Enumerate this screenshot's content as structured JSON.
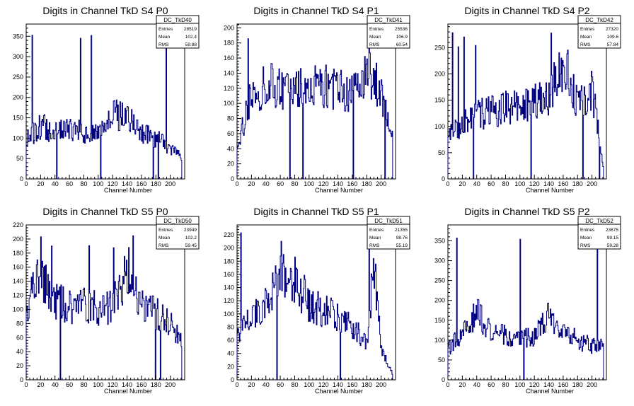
{
  "chart_data": [
    {
      "type": "histogram",
      "title": "Digits in Channel TkD S4 P0",
      "xlabel": "Channel Number",
      "xlim": [
        0,
        220
      ],
      "ylim": [
        0,
        380
      ],
      "xticks": [
        0,
        20,
        40,
        60,
        80,
        100,
        120,
        140,
        160,
        180,
        200
      ],
      "yticks": [
        50,
        100,
        150,
        200,
        250,
        300,
        350
      ],
      "stats": {
        "name": "DC_TkD40",
        "entries": "28519",
        "mean": "102.4",
        "rms": "59.88"
      },
      "bins": [
        [
          0,
          95
        ],
        [
          20,
          130
        ],
        [
          40,
          115
        ],
        [
          60,
          120
        ],
        [
          80,
          115
        ],
        [
          100,
          115
        ],
        [
          120,
          160
        ],
        [
          140,
          150
        ],
        [
          160,
          115
        ],
        [
          180,
          100
        ],
        [
          200,
          75
        ],
        [
          215,
          60
        ]
      ]
    },
    {
      "type": "histogram",
      "title": "Digits in Channel TkD S4 P1",
      "xlabel": "Channel Number",
      "xlim": [
        0,
        220
      ],
      "ylim": [
        0,
        205
      ],
      "xticks": [
        0,
        20,
        40,
        60,
        80,
        100,
        120,
        140,
        160,
        180,
        200
      ],
      "yticks": [
        20,
        40,
        60,
        80,
        100,
        120,
        140,
        160,
        180,
        200
      ],
      "stats": {
        "name": "DC_TkD41",
        "entries": "25536",
        "mean": "106.9",
        "rms": "60.54"
      },
      "bins": [
        [
          0,
          45
        ],
        [
          20,
          110
        ],
        [
          40,
          125
        ],
        [
          60,
          120
        ],
        [
          80,
          115
        ],
        [
          100,
          120
        ],
        [
          120,
          125
        ],
        [
          140,
          120
        ],
        [
          160,
          115
        ],
        [
          180,
          150
        ],
        [
          200,
          110
        ],
        [
          215,
          60
        ]
      ]
    },
    {
      "type": "histogram",
      "title": "Digits in Channel TkD S4 P2",
      "xlabel": "Channel Number",
      "xlim": [
        0,
        220
      ],
      "ylim": [
        0,
        295
      ],
      "xticks": [
        0,
        20,
        40,
        60,
        80,
        100,
        120,
        140,
        160,
        180,
        200
      ],
      "yticks": [
        50,
        100,
        150,
        200,
        250
      ],
      "stats": {
        "name": "DC_TkD42",
        "entries": "27320",
        "mean": "109.6",
        "rms": "57.84"
      },
      "bins": [
        [
          0,
          85
        ],
        [
          20,
          105
        ],
        [
          40,
          120
        ],
        [
          60,
          130
        ],
        [
          80,
          135
        ],
        [
          100,
          140
        ],
        [
          120,
          150
        ],
        [
          140,
          160
        ],
        [
          160,
          220
        ],
        [
          180,
          150
        ],
        [
          200,
          170
        ],
        [
          215,
          30
        ]
      ]
    },
    {
      "type": "histogram",
      "title": "Digits in Channel TkD S5 P0",
      "xlabel": "Channel Number",
      "xlim": [
        0,
        220
      ],
      "ylim": [
        0,
        220
      ],
      "xticks": [
        0,
        20,
        40,
        60,
        80,
        100,
        120,
        140,
        160,
        180,
        200
      ],
      "yticks": [
        20,
        40,
        60,
        80,
        100,
        120,
        140,
        160,
        180,
        200,
        220
      ],
      "stats": {
        "name": "DC_TkD50",
        "entries": "23949",
        "mean": "102.2",
        "rms": "59.45"
      },
      "bins": [
        [
          0,
          100
        ],
        [
          20,
          150
        ],
        [
          40,
          110
        ],
        [
          60,
          105
        ],
        [
          80,
          110
        ],
        [
          100,
          100
        ],
        [
          120,
          105
        ],
        [
          140,
          150
        ],
        [
          160,
          110
        ],
        [
          180,
          95
        ],
        [
          200,
          80
        ],
        [
          215,
          55
        ]
      ]
    },
    {
      "type": "histogram",
      "title": "Digits in Channel TkD S5 P1",
      "xlabel": "Channel Number",
      "xlim": [
        0,
        220
      ],
      "ylim": [
        0,
        235
      ],
      "xticks": [
        0,
        20,
        40,
        60,
        80,
        100,
        120,
        140,
        160,
        180,
        200
      ],
      "yticks": [
        20,
        40,
        60,
        80,
        100,
        120,
        140,
        160,
        180,
        200,
        220
      ],
      "stats": {
        "name": "DC_TkD51",
        "entries": "21355",
        "mean": "98.76",
        "rms": "55.19"
      },
      "bins": [
        [
          0,
          70
        ],
        [
          20,
          95
        ],
        [
          40,
          120
        ],
        [
          60,
          170
        ],
        [
          80,
          150
        ],
        [
          100,
          115
        ],
        [
          120,
          105
        ],
        [
          140,
          95
        ],
        [
          160,
          80
        ],
        [
          180,
          60
        ],
        [
          190,
          180
        ],
        [
          200,
          50
        ],
        [
          215,
          10
        ]
      ]
    },
    {
      "type": "histogram",
      "title": "Digits in Channel TkD S5 P2",
      "xlabel": "Channel Number",
      "xlim": [
        0,
        220
      ],
      "ylim": [
        0,
        390
      ],
      "xticks": [
        0,
        20,
        40,
        60,
        80,
        100,
        120,
        140,
        160,
        180,
        200
      ],
      "yticks": [
        50,
        100,
        150,
        200,
        250,
        300,
        350
      ],
      "stats": {
        "name": "DC_TkD52",
        "entries": "23675",
        "mean": "99.15",
        "rms": "59.28"
      },
      "bins": [
        [
          0,
          80
        ],
        [
          20,
          120
        ],
        [
          40,
          170
        ],
        [
          60,
          120
        ],
        [
          80,
          110
        ],
        [
          100,
          100
        ],
        [
          120,
          110
        ],
        [
          140,
          160
        ],
        [
          160,
          130
        ],
        [
          180,
          100
        ],
        [
          200,
          85
        ],
        [
          215,
          85
        ]
      ]
    }
  ],
  "stats_labels": {
    "entries": "Entries",
    "mean": "Mean",
    "rms": "RMS"
  }
}
